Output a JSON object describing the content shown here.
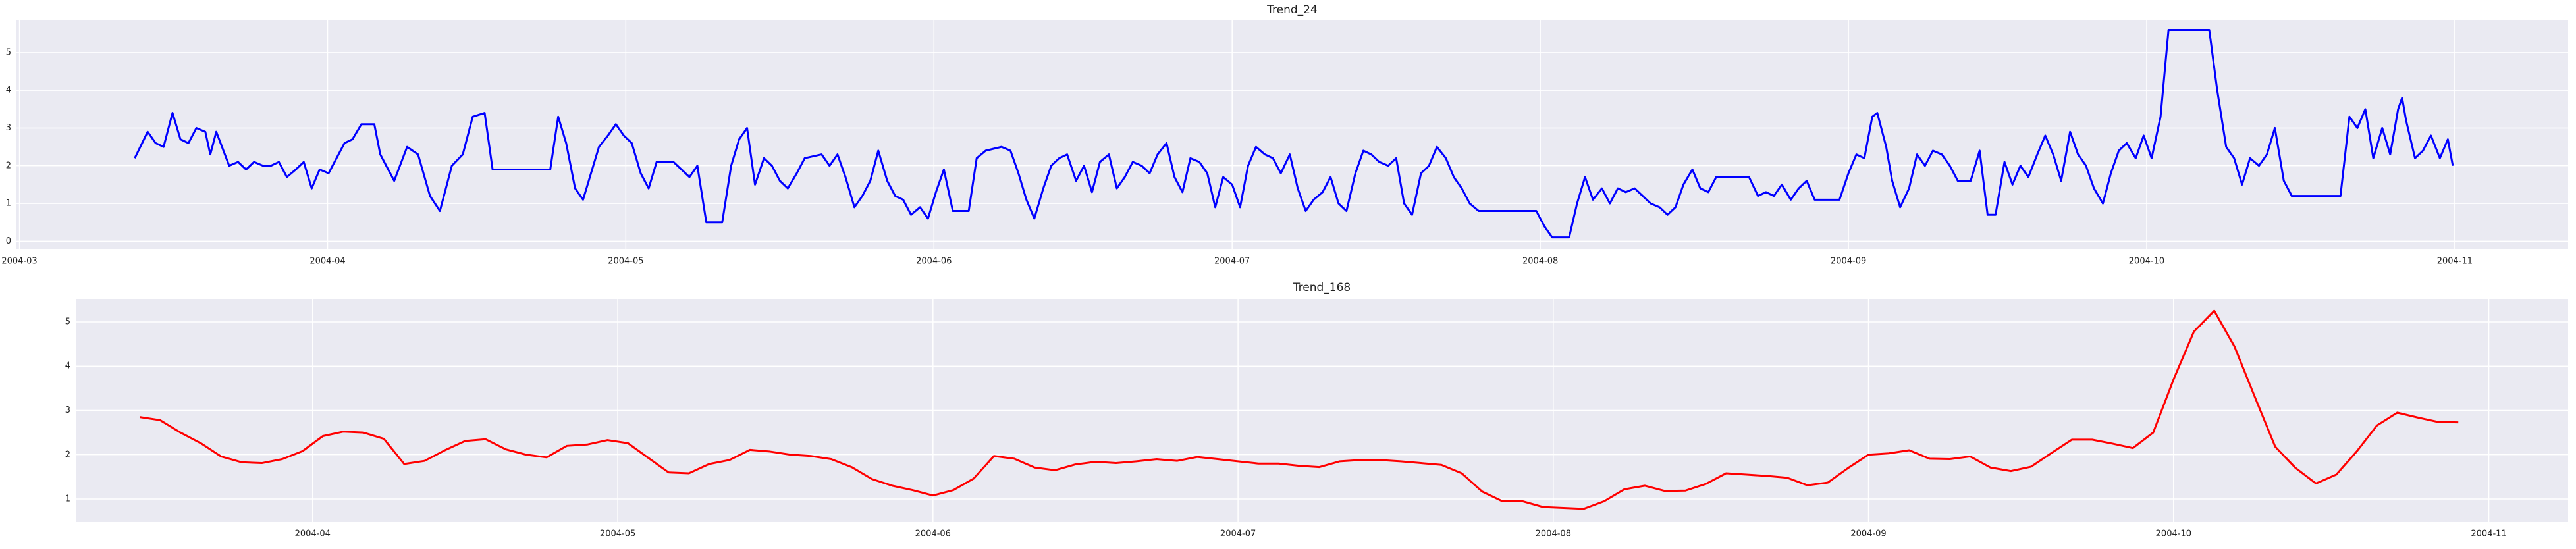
{
  "chart_data": [
    {
      "type": "line",
      "title": "Trend_24",
      "color": "#0000ff",
      "grid": true,
      "xlim": [
        60.7,
        317.4
      ],
      "ylim": [
        -0.22,
        5.87
      ],
      "xticks": [
        {
          "value": 61,
          "label": "2004-03"
        },
        {
          "value": 92,
          "label": "2004-04"
        },
        {
          "value": 122,
          "label": "2004-05"
        },
        {
          "value": 153,
          "label": "2004-06"
        },
        {
          "value": 183,
          "label": "2004-07"
        },
        {
          "value": 214,
          "label": "2004-08"
        },
        {
          "value": 245,
          "label": "2004-09"
        },
        {
          "value": 275,
          "label": "2004-10"
        },
        {
          "value": 306,
          "label": "2004-11"
        }
      ],
      "yticks": [
        0,
        1,
        2,
        3,
        4,
        5
      ],
      "x": [
        72.6,
        73.9,
        74.7,
        75.5,
        76.4,
        77.2,
        78,
        78.8,
        79.7,
        80.2,
        80.8,
        82.1,
        83,
        83.8,
        84.6,
        85.5,
        86.3,
        87.1,
        87.9,
        88.8,
        89.6,
        90.4,
        91.2,
        92.1,
        92.9,
        93.7,
        94.5,
        95.4,
        96.7,
        97.3,
        98.7,
        100,
        101.1,
        102.3,
        103.3,
        104.5,
        105.6,
        106.6,
        107.8,
        108.6,
        111.9,
        114.4,
        115.2,
        116,
        116.9,
        117.7,
        118.5,
        119.3,
        120.2,
        121,
        121.8,
        122.6,
        123.5,
        124.3,
        125.1,
        126.8,
        127.6,
        128.4,
        129.2,
        130.1,
        131.7,
        132.6,
        133.4,
        134.2,
        135,
        135.9,
        136.7,
        137.5,
        138.3,
        139.2,
        140,
        141.7,
        142.5,
        143.3,
        144.1,
        145,
        145.8,
        146.6,
        147.4,
        148.3,
        149.1,
        149.9,
        150.7,
        151.6,
        152.4,
        153.2,
        154,
        154.9,
        156.5,
        157.3,
        158.2,
        159.8,
        160.7,
        161.5,
        162.3,
        163.1,
        164,
        164.8,
        165.6,
        166.4,
        167.3,
        168.1,
        168.9,
        169.7,
        170.6,
        171.4,
        172.2,
        173,
        173.9,
        174.7,
        175.5,
        176.4,
        177.2,
        178,
        178.8,
        179.7,
        180.5,
        181.3,
        182.1,
        183,
        183.8,
        184.6,
        185.4,
        186.3,
        187.1,
        187.9,
        188.8,
        189.6,
        190.4,
        191.2,
        192.1,
        192.9,
        193.7,
        194.5,
        195.4,
        196.2,
        197,
        197.8,
        198.7,
        199.5,
        200.3,
        201.1,
        202,
        202.8,
        203.6,
        204.5,
        205.3,
        206.1,
        206.9,
        207.8,
        208.6,
        213.6,
        214.4,
        215.2,
        216.9,
        217.7,
        218.5,
        219.3,
        220.2,
        221,
        221.8,
        222.6,
        223.5,
        224.3,
        225.1,
        226,
        226.8,
        227.6,
        228.4,
        229.3,
        230.1,
        230.9,
        231.7,
        233.4,
        235,
        235.9,
        236.7,
        237.5,
        238.3,
        239.2,
        240,
        240.8,
        241.6,
        242.5,
        244.1,
        245,
        245.8,
        246.6,
        247.4,
        247.9,
        248.8,
        249.4,
        250.2,
        251.1,
        251.9,
        252.7,
        253.5,
        254.4,
        255.2,
        256,
        257.3,
        258.2,
        259,
        259.8,
        260.7,
        261.5,
        262.3,
        263.1,
        264,
        264.8,
        265.6,
        266.4,
        267.3,
        268.1,
        268.9,
        269.7,
        270.6,
        271.4,
        272.2,
        273,
        273.9,
        274.7,
        275.5,
        276.4,
        277.2,
        281.3,
        282.1,
        283,
        283.8,
        284.6,
        285.4,
        286.3,
        287.1,
        287.9,
        288.8,
        289.6,
        294.5,
        295.4,
        296.2,
        297,
        297.8,
        298.7,
        299.5,
        300.3,
        300.7,
        301.1,
        302,
        302.8,
        303.6,
        304.5,
        305.3,
        305.8
      ],
      "values": [
        2.2,
        2.9,
        2.6,
        2.5,
        3.4,
        2.7,
        2.6,
        3.0,
        2.9,
        2.3,
        2.9,
        2.0,
        2.1,
        1.9,
        2.1,
        2.0,
        2.0,
        2.1,
        1.7,
        1.9,
        2.1,
        1.4,
        1.9,
        1.8,
        2.2,
        2.6,
        2.7,
        3.1,
        3.1,
        2.3,
        1.6,
        2.5,
        2.3,
        1.2,
        0.8,
        2.0,
        2.3,
        3.3,
        3.4,
        1.9,
        1.9,
        1.9,
        3.3,
        2.6,
        1.4,
        1.1,
        1.8,
        2.5,
        2.8,
        3.1,
        2.8,
        2.6,
        1.8,
        1.4,
        2.1,
        2.1,
        1.9,
        1.7,
        2.0,
        0.5,
        0.5,
        2.0,
        2.7,
        3.0,
        1.5,
        2.2,
        2.0,
        1.6,
        1.4,
        1.8,
        2.2,
        2.3,
        2.0,
        2.3,
        1.7,
        0.9,
        1.2,
        1.6,
        2.4,
        1.6,
        1.2,
        1.1,
        0.7,
        0.9,
        0.6,
        1.3,
        1.9,
        0.8,
        0.8,
        2.2,
        2.4,
        2.5,
        2.4,
        1.8,
        1.1,
        0.6,
        1.4,
        2.0,
        2.2,
        2.3,
        1.6,
        2.0,
        1.3,
        2.1,
        2.3,
        1.4,
        1.7,
        2.1,
        2.0,
        1.8,
        2.3,
        2.6,
        1.7,
        1.3,
        2.2,
        2.1,
        1.8,
        0.9,
        1.7,
        1.5,
        0.9,
        2.0,
        2.5,
        2.3,
        2.2,
        1.8,
        2.3,
        1.4,
        0.8,
        1.1,
        1.3,
        1.7,
        1.0,
        0.8,
        1.8,
        2.4,
        2.3,
        2.1,
        2.0,
        2.2,
        1.0,
        0.7,
        1.8,
        2.0,
        2.5,
        2.2,
        1.7,
        1.4,
        1.0,
        0.8,
        0.8,
        0.8,
        0.4,
        0.1,
        0.1,
        1.0,
        1.7,
        1.1,
        1.4,
        1.0,
        1.4,
        1.3,
        1.4,
        1.2,
        1.0,
        0.9,
        0.7,
        0.9,
        1.5,
        1.9,
        1.4,
        1.3,
        1.7,
        1.7,
        1.7,
        1.2,
        1.3,
        1.2,
        1.5,
        1.1,
        1.4,
        1.6,
        1.1,
        1.1,
        1.1,
        1.8,
        2.3,
        2.2,
        3.3,
        3.4,
        2.5,
        1.6,
        0.9,
        1.4,
        2.3,
        2.0,
        2.4,
        2.3,
        2.0,
        1.6,
        1.6,
        2.4,
        0.7,
        0.7,
        2.1,
        1.5,
        2.0,
        1.7,
        2.3,
        2.8,
        2.3,
        1.6,
        2.9,
        2.3,
        2.0,
        1.4,
        1.0,
        1.8,
        2.4,
        2.6,
        2.2,
        2.8,
        2.2,
        3.3,
        5.6,
        5.6,
        4.0,
        2.5,
        2.2,
        1.5,
        2.2,
        2.0,
        2.3,
        3.0,
        1.6,
        1.2,
        1.2,
        3.3,
        3.0,
        3.5,
        2.2,
        3.0,
        2.3,
        3.5,
        3.8,
        3.2,
        2.2,
        2.4,
        2.8,
        2.2,
        2.7,
        2.0
      ]
    },
    {
      "type": "line",
      "title": "Trend_168",
      "color": "#ff0000",
      "grid": true,
      "xlim": [
        68.7,
        313.8
      ],
      "ylim": [
        0.48,
        5.52
      ],
      "xticks": [
        {
          "value": 92,
          "label": "2004-04"
        },
        {
          "value": 122,
          "label": "2004-05"
        },
        {
          "value": 153,
          "label": "2004-06"
        },
        {
          "value": 183,
          "label": "2004-07"
        },
        {
          "value": 214,
          "label": "2004-08"
        },
        {
          "value": 245,
          "label": "2004-09"
        },
        {
          "value": 275,
          "label": "2004-10"
        },
        {
          "value": 306,
          "label": "2004-11"
        }
      ],
      "yticks": [
        1,
        2,
        3,
        4,
        5
      ],
      "x": [
        75,
        77,
        79,
        81,
        83,
        85,
        87,
        89,
        91,
        93,
        95,
        97,
        99,
        101,
        103,
        105,
        107,
        109,
        111,
        113,
        115,
        117,
        119,
        121,
        123,
        125,
        127,
        129,
        131,
        133,
        135,
        137,
        139,
        141,
        143,
        145,
        147,
        149,
        151,
        153,
        155,
        157,
        159,
        161,
        163,
        165,
        167,
        169,
        171,
        173,
        175,
        177,
        179,
        181,
        183,
        185,
        187,
        189,
        191,
        193,
        195,
        197,
        199,
        201,
        203,
        205,
        207,
        209,
        211,
        213,
        215,
        217,
        219,
        221,
        223,
        225,
        227,
        229,
        231,
        233,
        235,
        237,
        239,
        241,
        243,
        245,
        247,
        249,
        251,
        253,
        255,
        257,
        259,
        261,
        263,
        265,
        267,
        269,
        271,
        273,
        275,
        277,
        279,
        281,
        283,
        285,
        287,
        289,
        291,
        293,
        295,
        297,
        299,
        301,
        303
      ],
      "values": [
        2.85,
        2.78,
        2.5,
        2.26,
        1.96,
        1.83,
        1.81,
        1.9,
        2.08,
        2.42,
        2.52,
        2.5,
        2.36,
        1.79,
        1.86,
        2.1,
        2.31,
        2.35,
        2.12,
        2.0,
        1.94,
        2.2,
        2.23,
        2.33,
        2.26,
        1.93,
        1.6,
        1.58,
        1.79,
        1.88,
        2.11,
        2.07,
        2.0,
        1.97,
        1.9,
        1.72,
        1.45,
        1.3,
        1.2,
        1.08,
        1.2,
        1.46,
        1.97,
        1.91,
        1.71,
        1.65,
        1.78,
        1.84,
        1.81,
        1.85,
        1.9,
        1.86,
        1.95,
        1.9,
        1.85,
        1.8,
        1.8,
        1.75,
        1.72,
        1.85,
        1.88,
        1.88,
        1.85,
        1.81,
        1.77,
        1.58,
        1.17,
        0.95,
        0.95,
        0.82,
        0.8,
        0.78,
        0.95,
        1.22,
        1.3,
        1.18,
        1.19,
        1.34,
        1.58,
        1.55,
        1.52,
        1.48,
        1.31,
        1.37,
        1.7,
        2.0,
        2.03,
        2.1,
        1.91,
        1.9,
        1.96,
        1.71,
        1.63,
        1.73,
        2.04,
        2.34,
        2.34,
        2.25,
        2.15,
        2.5,
        3.7,
        4.78,
        5.25,
        4.44,
        3.3,
        2.18,
        1.7,
        1.35,
        1.55,
        2.07,
        2.66,
        2.95,
        2.84,
        2.74,
        2.73
      ]
    }
  ]
}
